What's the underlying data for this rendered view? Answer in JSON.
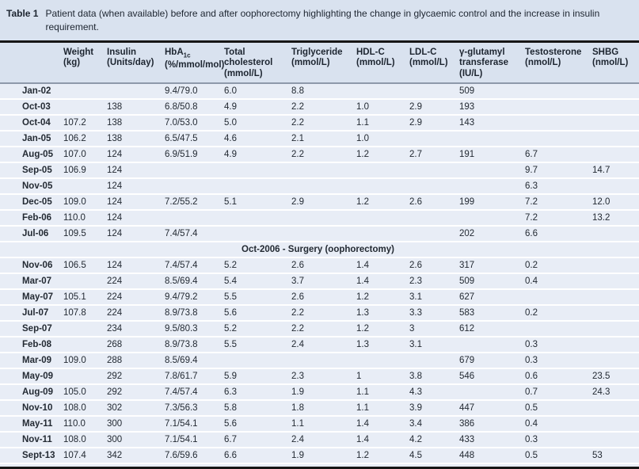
{
  "title": {
    "label": "Table 1",
    "caption": "Patient data (when available) before and after oophorectomy highlighting the change in glycaemic control and the increase in insulin requirement."
  },
  "colors": {
    "band_blue": "#d9e2ef",
    "row_blue": "#e8edf6",
    "rule_black": "#161616",
    "header_rule": "#8e99aa",
    "text": "#232a33"
  },
  "table": {
    "columns": [
      {
        "text": ""
      },
      {
        "text": "Weight (kg)"
      },
      {
        "text": "Insulin (Units/day)"
      },
      {
        "pre": "HbA",
        "sub": "1c",
        "post": " (%/mmol/mol)"
      },
      {
        "text": "Total cholesterol (mmol/L)"
      },
      {
        "text": "Triglyceride (mmol/L)"
      },
      {
        "text": "HDL-C (mmol/L)"
      },
      {
        "text": "LDL-C (mmol/L)"
      },
      {
        "text": "γ-glutamyl transferase (IU/L)"
      },
      {
        "text": "Testosterone (nmol/L)"
      },
      {
        "text": "SHBG (nmol/L)"
      }
    ],
    "pre_surgery_rows": [
      [
        "Jan-02",
        "",
        "",
        "9.4/79.0",
        "6.0",
        "8.8",
        "",
        "",
        "509",
        "",
        ""
      ],
      [
        "Oct-03",
        "",
        "138",
        "6.8/50.8",
        "4.9",
        "2.2",
        "1.0",
        "2.9",
        "193",
        "",
        ""
      ],
      [
        "Oct-04",
        "107.2",
        "138",
        "7.0/53.0",
        "5.0",
        "2.2",
        "1.1",
        "2.9",
        "143",
        "",
        ""
      ],
      [
        "Jan-05",
        "106.2",
        "138",
        "6.5/47.5",
        "4.6",
        "2.1",
        "1.0",
        "",
        "",
        "",
        ""
      ],
      [
        "Aug-05",
        "107.0",
        "124",
        "6.9/51.9",
        "4.9",
        "2.2",
        "1.2",
        "2.7",
        "191",
        "6.7",
        ""
      ],
      [
        "Sep-05",
        "106.9",
        "124",
        "",
        "",
        "",
        "",
        "",
        "",
        "9.7",
        "14.7"
      ],
      [
        "Nov-05",
        "",
        "124",
        "",
        "",
        "",
        "",
        "",
        "",
        "6.3",
        ""
      ],
      [
        "Dec-05",
        "109.0",
        "124",
        "7.2/55.2",
        "5.1",
        "2.9",
        "1.2",
        "2.6",
        "199",
        "7.2",
        "12.0"
      ],
      [
        "Feb-06",
        "110.0",
        "124",
        "",
        "",
        "",
        "",
        "",
        "",
        "7.2",
        "13.2"
      ],
      [
        "Jul-06",
        "109.5",
        "124",
        "7.4/57.4",
        "",
        "",
        "",
        "",
        "202",
        "6.6",
        ""
      ]
    ],
    "surgery_row": "Oct-2006 - Surgery (oophorectomy)",
    "post_surgery_rows": [
      [
        "Nov-06",
        "106.5",
        "124",
        "7.4/57.4",
        "5.2",
        "2.6",
        "1.4",
        "2.6",
        "317",
        "0.2",
        ""
      ],
      [
        "Mar-07",
        "",
        "224",
        "8.5/69.4",
        "5.4",
        "3.7",
        "1.4",
        "2.3",
        "509",
        "0.4",
        ""
      ],
      [
        "May-07",
        "105.1",
        "224",
        "9.4/79.2",
        "5.5",
        "2.6",
        "1.2",
        "3.1",
        "627",
        "",
        ""
      ],
      [
        "Jul-07",
        "107.8",
        "224",
        "8.9/73.8",
        "5.6",
        "2.2",
        "1.3",
        "3.3",
        "583",
        "0.2",
        ""
      ],
      [
        "Sep-07",
        "",
        "234",
        "9.5/80.3",
        "5.2",
        "2.2",
        "1.2",
        "3",
        "612",
        "",
        ""
      ],
      [
        "Feb-08",
        "",
        "268",
        "8.9/73.8",
        "5.5",
        "2.4",
        "1.3",
        "3.1",
        "",
        "0.3",
        ""
      ],
      [
        "Mar-09",
        "109.0",
        "288",
        "8.5/69.4",
        "",
        "",
        "",
        "",
        "679",
        "0.3",
        ""
      ],
      [
        "May-09",
        "",
        "292",
        "7.8/61.7",
        "5.9",
        "2.3",
        "1",
        "3.8",
        "546",
        "0.6",
        "23.5"
      ],
      [
        "Aug-09",
        "105.0",
        "292",
        "7.4/57.4",
        "6.3",
        "1.9",
        "1.1",
        "4.3",
        "",
        "0.7",
        "24.3"
      ],
      [
        "Nov-10",
        "108.0",
        "302",
        "7.3/56.3",
        "5.8",
        "1.8",
        "1.1",
        "3.9",
        "447",
        "0.5",
        ""
      ],
      [
        "May-11",
        "110.0",
        "300",
        "7.1/54.1",
        "5.6",
        "1.1",
        "1.4",
        "3.4",
        "386",
        "0.4",
        ""
      ],
      [
        "Nov-11",
        "108.0",
        "300",
        "7.1/54.1",
        "6.7",
        "2.4",
        "1.4",
        "4.2",
        "433",
        "0.3",
        ""
      ],
      [
        "Sept-13",
        "107.4",
        "342",
        "7.6/59.6",
        "6.6",
        "1.9",
        "1.2",
        "4.5",
        "448",
        "0.5",
        "53"
      ]
    ]
  }
}
